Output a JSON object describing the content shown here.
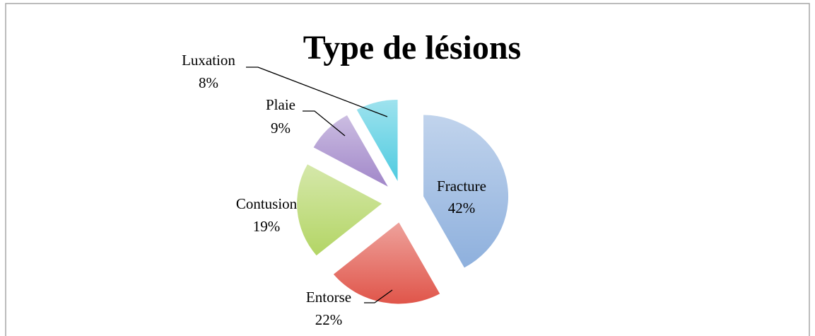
{
  "chart_data": {
    "type": "pie",
    "title": "Type de lésions",
    "categories": [
      "Fracture",
      "Entorse",
      "Contusion",
      "Plaie",
      "Luxation"
    ],
    "values": [
      42,
      22,
      19,
      9,
      8
    ],
    "value_labels": [
      "42%",
      "22%",
      "19%",
      "9%",
      "8%"
    ],
    "colors": [
      "#8eb0dd",
      "#e0554a",
      "#b3d565",
      "#a187c9",
      "#4fcbe0"
    ]
  }
}
